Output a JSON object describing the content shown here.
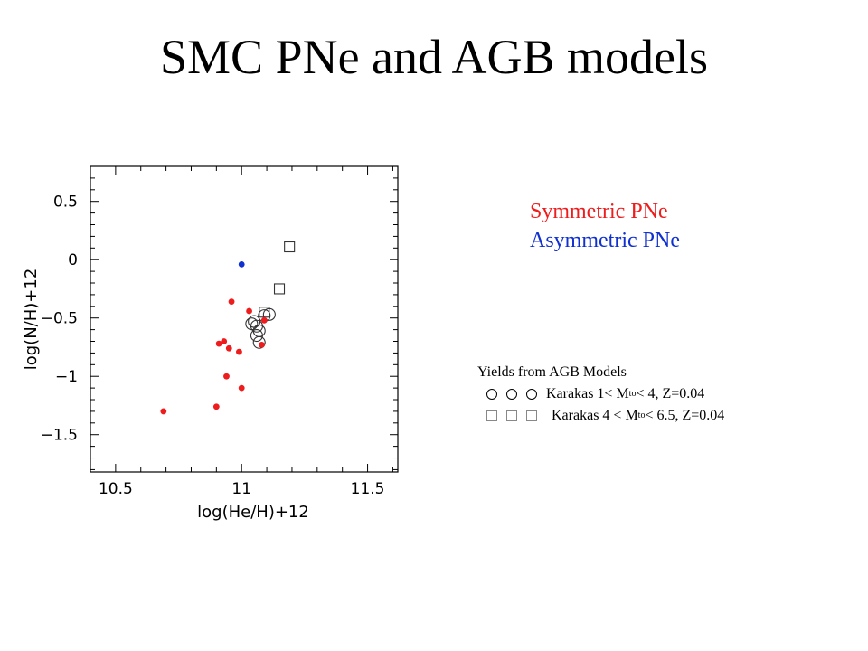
{
  "title": "SMC PNe and AGB models",
  "legend": {
    "symmetric_label": "Symmetric PNe",
    "asymmetric_label": "Asymmetric PNe",
    "symmetric_color": "#ee1c1c",
    "asymmetric_color": "#1030d0"
  },
  "yields": {
    "heading": "Yields from AGB Models",
    "low_mass": {
      "icon": "open-circle-icon",
      "prefix": "Karakas 1< M",
      "sub": "to",
      "suffix": " < 4, Z=0.04"
    },
    "high_mass": {
      "icon": "open-square-icon",
      "prefix": "Karakas 4 < M",
      "sub": "to",
      "suffix": " < 6.5, Z=0.04"
    }
  },
  "chart_data": {
    "type": "scatter",
    "title": "",
    "xlabel": "log(He/H)+12",
    "ylabel": "log(N/H)+12",
    "xlim": [
      10.4,
      11.62
    ],
    "ylim": [
      -1.82,
      0.8
    ],
    "xticks": [
      10.5,
      11,
      11.5
    ],
    "xtick_labels": [
      "10.5",
      "11",
      "11.5"
    ],
    "yticks": [
      0.5,
      0,
      -0.5,
      -1,
      -1.5
    ],
    "ytick_labels": [
      "0.5",
      "0",
      "−0.5",
      "−1",
      "−1.5"
    ],
    "grid": false,
    "series": [
      {
        "name": "Symmetric PNe",
        "marker": "filled-circle",
        "color": "#ee1c1c",
        "points": [
          [
            10.69,
            -1.3
          ],
          [
            10.9,
            -1.26
          ],
          [
            10.94,
            -1.0
          ],
          [
            11.0,
            -1.1
          ],
          [
            10.99,
            -0.79
          ],
          [
            10.95,
            -0.76
          ],
          [
            10.93,
            -0.7
          ],
          [
            10.91,
            -0.72
          ],
          [
            10.96,
            -0.36
          ],
          [
            11.03,
            -0.44
          ],
          [
            11.09,
            -0.52
          ],
          [
            11.08,
            -0.73
          ]
        ]
      },
      {
        "name": "Asymmetric PNe",
        "marker": "filled-circle",
        "color": "#1030d0",
        "points": [
          [
            11.0,
            -0.04
          ]
        ]
      },
      {
        "name": "Karakas 1< Mto < 4, Z=0.04",
        "marker": "open-circle",
        "color": "#000000",
        "points": [
          [
            11.04,
            -0.55
          ],
          [
            11.05,
            -0.53
          ],
          [
            11.06,
            -0.57
          ],
          [
            11.07,
            -0.61
          ],
          [
            11.06,
            -0.65
          ],
          [
            11.07,
            -0.71
          ],
          [
            11.09,
            -0.48
          ],
          [
            11.11,
            -0.47
          ]
        ]
      },
      {
        "name": "Karakas 4 < Mto < 6.5, Z=0.04",
        "marker": "open-square",
        "color": "#666666",
        "points": [
          [
            11.19,
            0.11
          ],
          [
            11.15,
            -0.25
          ],
          [
            11.09,
            -0.45
          ]
        ]
      }
    ]
  }
}
